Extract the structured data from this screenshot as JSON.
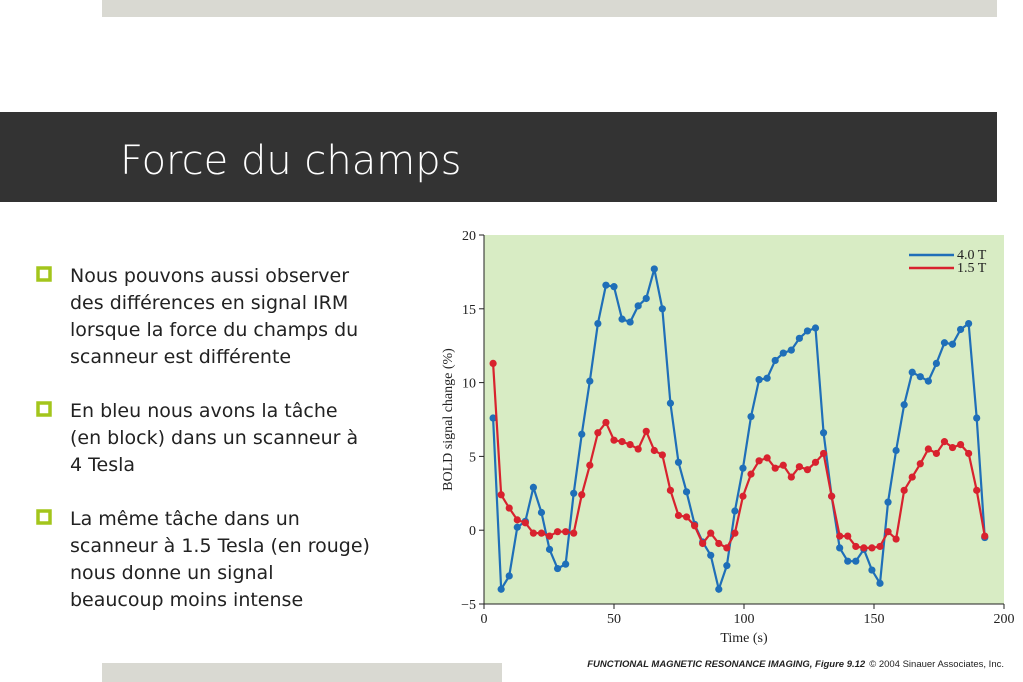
{
  "slide_title": "Force du champs",
  "bullets": [
    [
      "Nous pouvons aussi observer",
      "des différences en signal IRM",
      "lorsque la force du champs du",
      "scanneur est différente"
    ],
    [
      "En bleu nous avons la tâche",
      "(en block) dans un scanneur à",
      "4 Tesla"
    ],
    [
      "La même tâche dans un",
      "scanneur à 1.5 Tesla (en rouge)",
      "nous donne un signal",
      "beaucoup moins intense"
    ]
  ],
  "caption": {
    "source": "FUNCTIONAL MAGNETIC RESONANCE IMAGING, Figure 9.12",
    "copyright": "© 2004 Sinauer Associates, Inc."
  },
  "chart_data": {
    "type": "line",
    "xlabel": "Time (s)",
    "ylabel": "BOLD signal change (%)",
    "xlim": [
      0,
      200
    ],
    "xticks": [
      0,
      50,
      100,
      150,
      200
    ],
    "ylim": [
      -5,
      20
    ],
    "yticks": [
      {
        "value": -5,
        "label": "−5"
      },
      0,
      5,
      10,
      15,
      20
    ],
    "legend": "upper right",
    "background": "#d8ecc4",
    "x": [
      3.5,
      6.6,
      9.7,
      12.8,
      15.9,
      19,
      22.1,
      25.2,
      28.3,
      31.4,
      34.5,
      37.6,
      40.7,
      43.8,
      46.9,
      50,
      53.1,
      56.2,
      59.3,
      62.4,
      65.5,
      68.6,
      71.7,
      74.8,
      77.9,
      81,
      84.1,
      87.2,
      90.3,
      93.4,
      96.5,
      99.6,
      102.7,
      105.8,
      108.9,
      112,
      115.1,
      118.2,
      121.3,
      124.4,
      127.5,
      130.6,
      133.7,
      136.8,
      139.9,
      143,
      146.1,
      149.2,
      152.3,
      155.4,
      158.5,
      161.6,
      164.7,
      167.8,
      170.9,
      174,
      177.1,
      180.2,
      183.3,
      186.4,
      189.5,
      192.6
    ],
    "series": [
      {
        "name": "4.0 T",
        "color": "#1f6fb8",
        "values": [
          7.6,
          -4.0,
          -3.1,
          0.2,
          0.6,
          2.9,
          1.2,
          -1.3,
          -2.6,
          -2.3,
          2.5,
          6.5,
          10.1,
          14.0,
          16.6,
          16.5,
          14.3,
          14.1,
          15.2,
          15.7,
          17.7,
          15.0,
          8.6,
          4.6,
          2.6,
          0.4,
          -0.8,
          -1.7,
          -4.0,
          -2.4,
          1.3,
          4.2,
          7.7,
          10.2,
          10.3,
          11.5,
          12.0,
          12.2,
          13.0,
          13.5,
          13.7,
          6.6,
          2.3,
          -1.2,
          -2.1,
          -2.1,
          -1.3,
          -2.7,
          -3.6,
          1.9,
          5.4,
          8.5,
          10.7,
          10.4,
          10.1,
          11.3,
          12.7,
          12.6,
          13.6,
          14.0,
          7.6,
          -0.5
        ]
      },
      {
        "name": "1.5 T",
        "color": "#d8222e",
        "values": [
          11.3,
          2.4,
          1.5,
          0.7,
          0.5,
          -0.2,
          -0.2,
          -0.4,
          -0.1,
          -0.1,
          -0.2,
          2.4,
          4.4,
          6.6,
          7.3,
          6.1,
          6.0,
          5.8,
          5.5,
          6.7,
          5.4,
          5.1,
          2.7,
          1.0,
          0.9,
          0.3,
          -0.9,
          -0.2,
          -0.9,
          -1.2,
          -0.2,
          2.3,
          3.8,
          4.7,
          4.9,
          4.2,
          4.4,
          3.6,
          4.3,
          4.1,
          4.6,
          5.2,
          2.3,
          -0.4,
          -0.4,
          -1.1,
          -1.2,
          -1.2,
          -1.1,
          -0.1,
          -0.6,
          2.7,
          3.6,
          4.5,
          5.5,
          5.2,
          6.0,
          5.6,
          5.8,
          5.2,
          2.7,
          -0.4
        ]
      }
    ]
  }
}
